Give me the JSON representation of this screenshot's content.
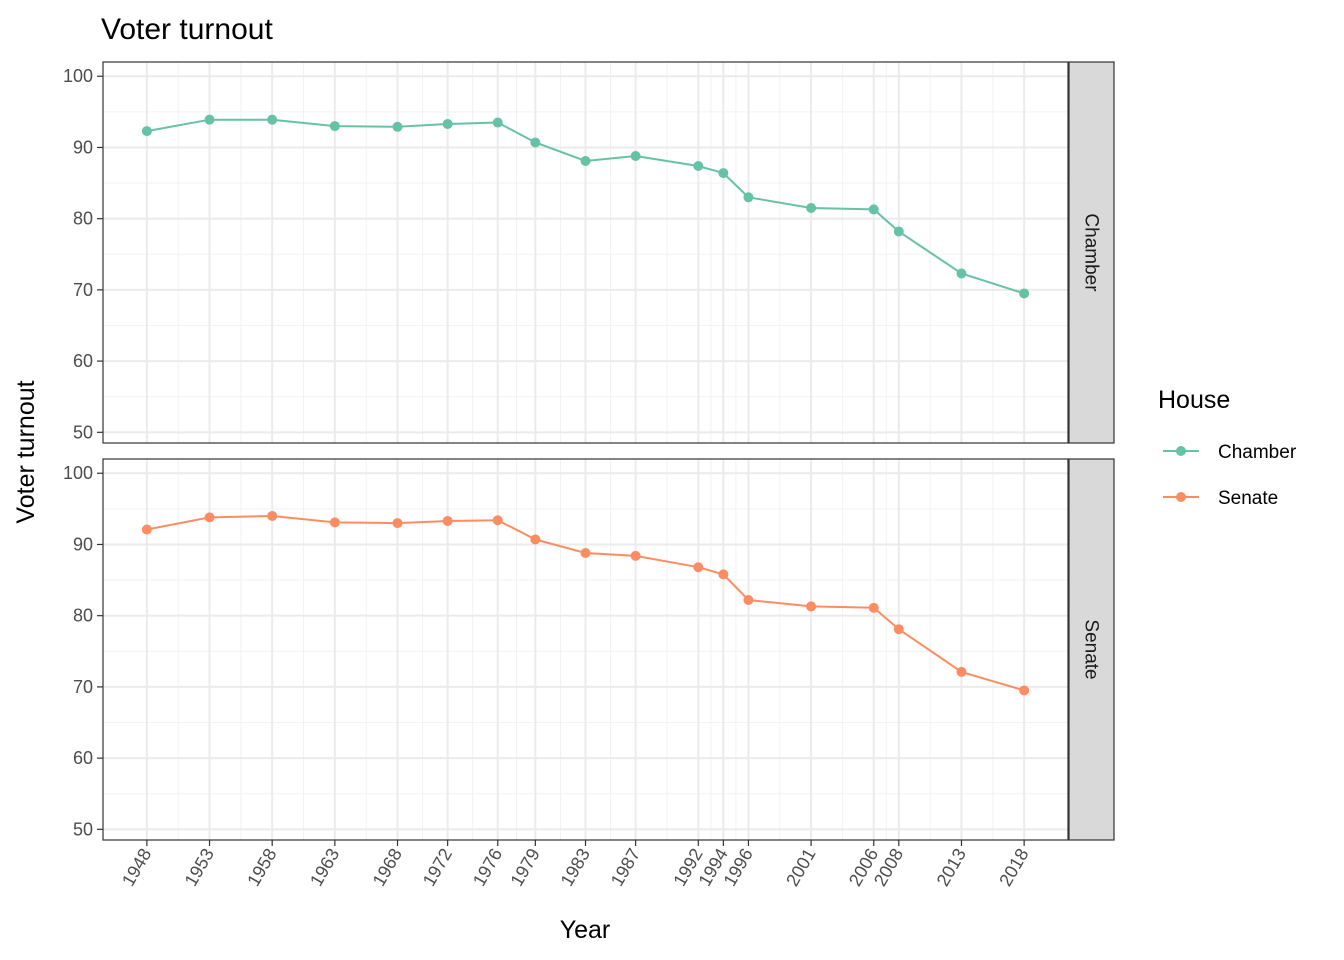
{
  "chart_data": {
    "type": "line",
    "title": "Voter turnout",
    "xlabel": "Year",
    "ylabel": "Voter turnout",
    "x": [
      1948,
      1953,
      1958,
      1963,
      1968,
      1972,
      1976,
      1979,
      1983,
      1987,
      1992,
      1994,
      1996,
      2001,
      2006,
      2008,
      2013,
      2018
    ],
    "x_ticks": [
      "1948",
      "1953",
      "1958",
      "1963",
      "1968",
      "1972",
      "1976",
      "1979",
      "1983",
      "1987",
      "1992",
      "1994",
      "1996",
      "2001",
      "2006",
      "2008",
      "2013",
      "2018"
    ],
    "y_ticks": [
      "50",
      "60",
      "70",
      "80",
      "90",
      "100"
    ],
    "ylim": [
      48.5,
      102
    ],
    "xlim": [
      1944.5,
      2021.5
    ],
    "grid": true,
    "facet_by": "House",
    "legend": {
      "title": "House",
      "position": "right"
    },
    "series": [
      {
        "name": "Chamber",
        "color": "#66C2A5",
        "values": [
          92.3,
          93.9,
          93.9,
          93.0,
          92.9,
          93.3,
          93.5,
          90.7,
          88.1,
          88.8,
          87.4,
          86.4,
          83.0,
          81.5,
          81.3,
          78.2,
          72.3,
          69.5
        ]
      },
      {
        "name": "Senate",
        "color": "#FC8D62",
        "values": [
          92.1,
          93.8,
          94.0,
          93.1,
          93.0,
          93.3,
          93.4,
          90.7,
          88.8,
          88.4,
          86.8,
          85.8,
          82.2,
          81.3,
          81.1,
          78.1,
          72.1,
          69.5
        ]
      }
    ]
  }
}
